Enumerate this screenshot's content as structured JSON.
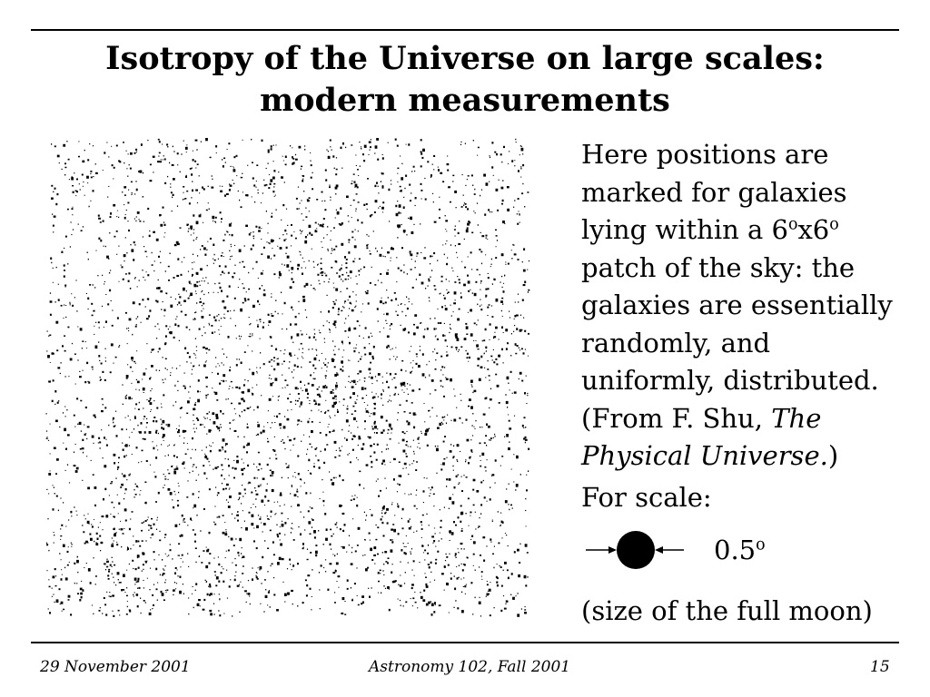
{
  "title": "Isotropy of the Universe on large scales: modern measurements",
  "description": {
    "line1": "Here positions are",
    "line2": "marked for galaxies",
    "line3_pre": "lying within a 6",
    "line3_sup1": "o",
    "line3_mid": "x6",
    "line3_sup2": "o",
    "line4": "patch of the sky: the",
    "line5": "galaxies are essentially",
    "line6": "randomly, and",
    "line7": "uniformly, distributed.",
    "line8_pre": "(From F. Shu, ",
    "line8_italic": "The",
    "line9_italic": "Physical Universe.",
    "line9_post": ")"
  },
  "scale": {
    "label": "For scale:",
    "value": "0.5",
    "value_sup": "o",
    "note": "(size of the full moon)"
  },
  "footer": {
    "date": "29 November 2001",
    "course": "Astronomy 102, Fall 2001",
    "page": "15"
  },
  "colors": {
    "background": "#ffffff",
    "ink": "#000000"
  }
}
